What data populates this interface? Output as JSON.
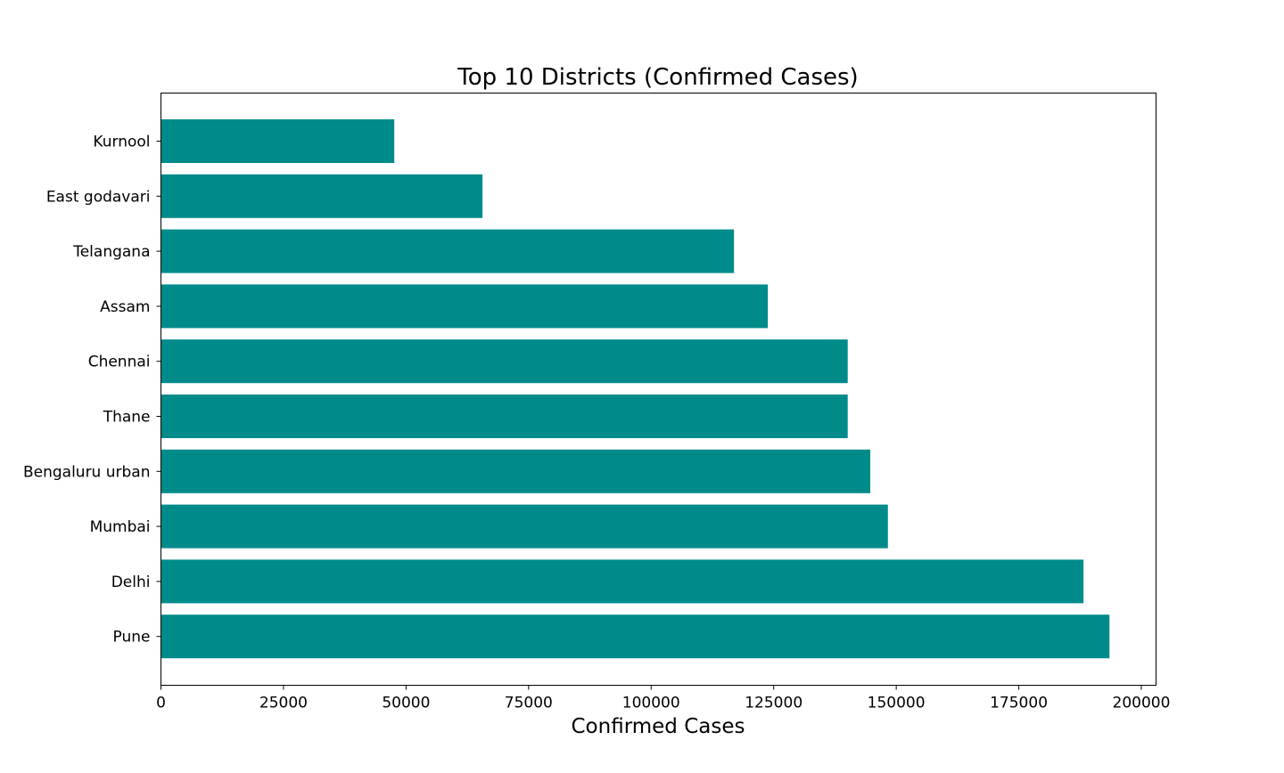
{
  "chart_data": {
    "type": "bar",
    "orientation": "horizontal",
    "title": "Top 10 Districts (Confirmed Cases)",
    "xlabel": "Confirmed Cases",
    "ylabel": "",
    "xlim": [
      0,
      203000
    ],
    "x_ticks": [
      0,
      25000,
      50000,
      75000,
      100000,
      125000,
      150000,
      175000,
      200000
    ],
    "x_tick_labels": [
      "0",
      "25000",
      "50000",
      "75000",
      "100000",
      "125000",
      "150000",
      "175000",
      "200000"
    ],
    "categories": [
      "Kurnool",
      "East godavari",
      "Telangana",
      "Assam",
      "Chennai",
      "Thane",
      "Bengaluru urban",
      "Mumbai",
      "Delhi",
      "Pune"
    ],
    "values": [
      47600,
      65600,
      116900,
      123800,
      140100,
      140100,
      144700,
      148300,
      188200,
      193500
    ],
    "bar_color": "#008b8b",
    "grid": false,
    "legend": "none"
  }
}
